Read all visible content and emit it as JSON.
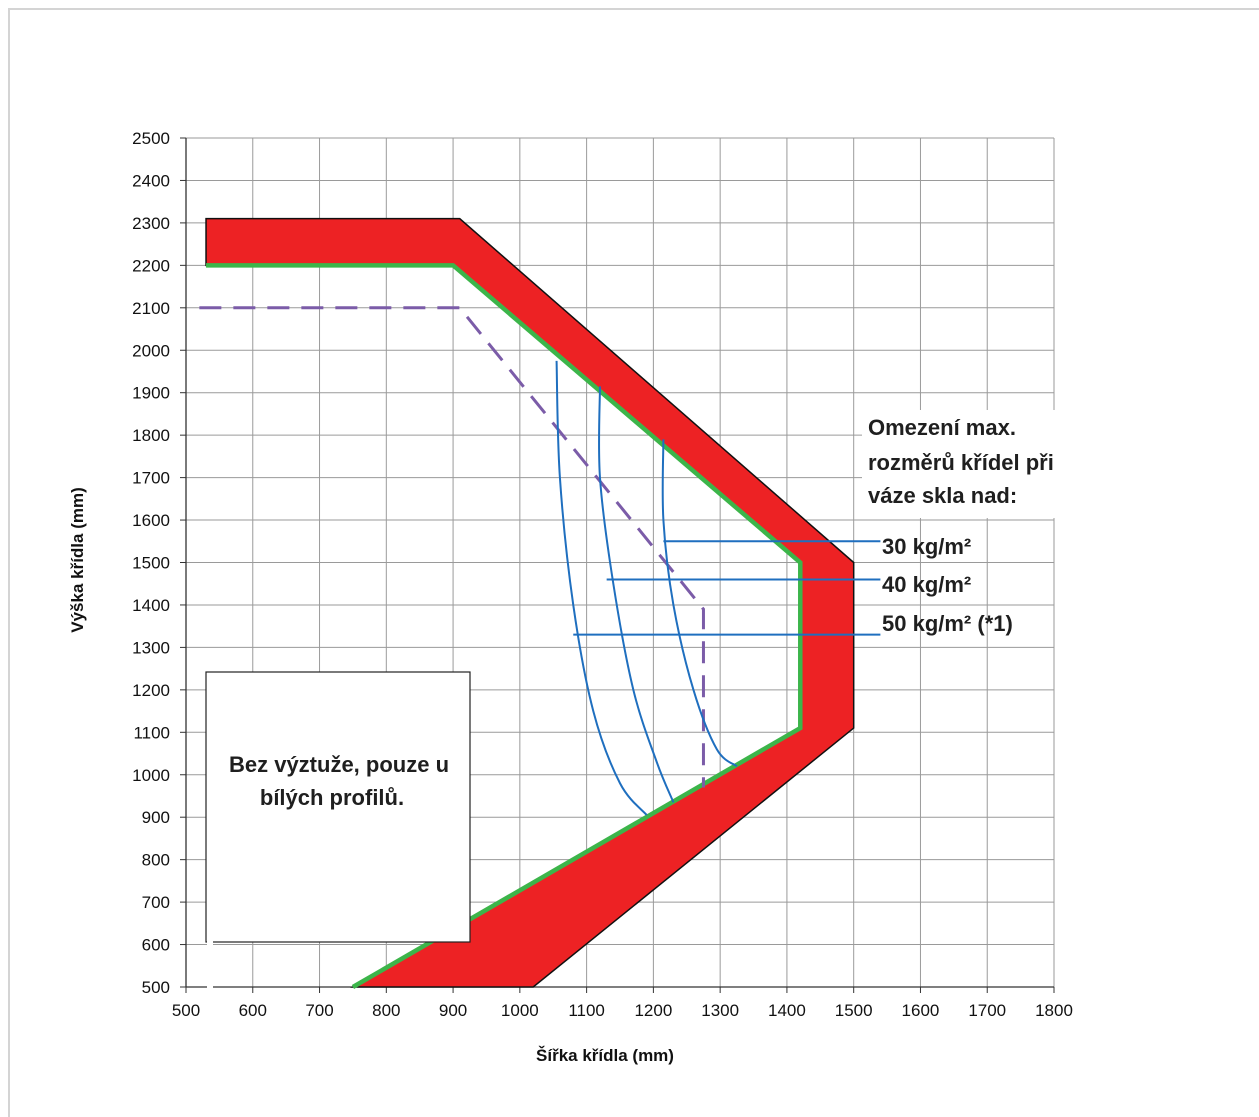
{
  "chart_data": {
    "type": "line",
    "xlabel": "Šířka křídla (mm)",
    "ylabel": "Výška křídla (mm)",
    "xlim": [
      500,
      1800
    ],
    "ylim": [
      500,
      2500
    ],
    "x_ticks": [
      500,
      600,
      700,
      800,
      900,
      1000,
      1100,
      1200,
      1300,
      1400,
      1500,
      1600,
      1700,
      1800
    ],
    "y_ticks": [
      500,
      600,
      700,
      800,
      900,
      1000,
      1100,
      1200,
      1300,
      1400,
      1500,
      1600,
      1700,
      1800,
      1900,
      2000,
      2100,
      2200,
      2300,
      2400,
      2500
    ],
    "grid": true,
    "colors": {
      "outer_band": "#ed2224",
      "inner_limit": "#3cb54a",
      "dashed": "#7b5ca8",
      "curves": "#1f6fbf",
      "outline": "#111111"
    },
    "outer_band_polygon": [
      [
        530,
        2310
      ],
      [
        910,
        2310
      ],
      [
        1500,
        1500
      ],
      [
        1500,
        1110
      ],
      [
        1020,
        500
      ],
      [
        750,
        500
      ],
      [
        1420,
        1110
      ],
      [
        1420,
        1500
      ],
      [
        900,
        2200
      ],
      [
        530,
        2200
      ]
    ],
    "inner_limit": {
      "x": [
        530,
        900,
        1420,
        1420,
        750
      ],
      "y": [
        2200,
        2200,
        1500,
        1110,
        500
      ]
    },
    "dashed_limit": {
      "x": [
        520,
        910,
        1275,
        1275
      ],
      "y": [
        2100,
        2100,
        1390,
        970
      ]
    },
    "weight_curves": [
      {
        "x": [
          1055,
          1060,
          1080,
          1110,
          1150,
          1190
        ],
        "y": [
          1975,
          1700,
          1400,
          1150,
          980,
          905
        ]
      },
      {
        "x": [
          1120,
          1120,
          1140,
          1170,
          1205,
          1230
        ],
        "y": [
          1915,
          1700,
          1450,
          1200,
          1030,
          935
        ]
      },
      {
        "x": [
          1215,
          1215,
          1230,
          1260,
          1295,
          1325
        ],
        "y": [
          1790,
          1600,
          1400,
          1200,
          1060,
          1020
        ]
      }
    ],
    "leader_lines": [
      {
        "x": [
          1215,
          1540
        ],
        "y": [
          1550,
          1550
        ]
      },
      {
        "x": [
          1130,
          1540
        ],
        "y": [
          1460,
          1460
        ]
      },
      {
        "x": [
          1080,
          1540
        ],
        "y": [
          1330,
          1330
        ]
      }
    ],
    "annotations": {
      "title_lines": [
        "Omezení max.",
        "rozměrů křídel při",
        "váze skla nad:"
      ],
      "w30": "30 kg/m²",
      "w40": "40 kg/m²",
      "w50": "50 kg/m² (*1)",
      "box_lines": [
        "Bez výztuže, pouze u",
        "bílých profilů."
      ]
    }
  }
}
